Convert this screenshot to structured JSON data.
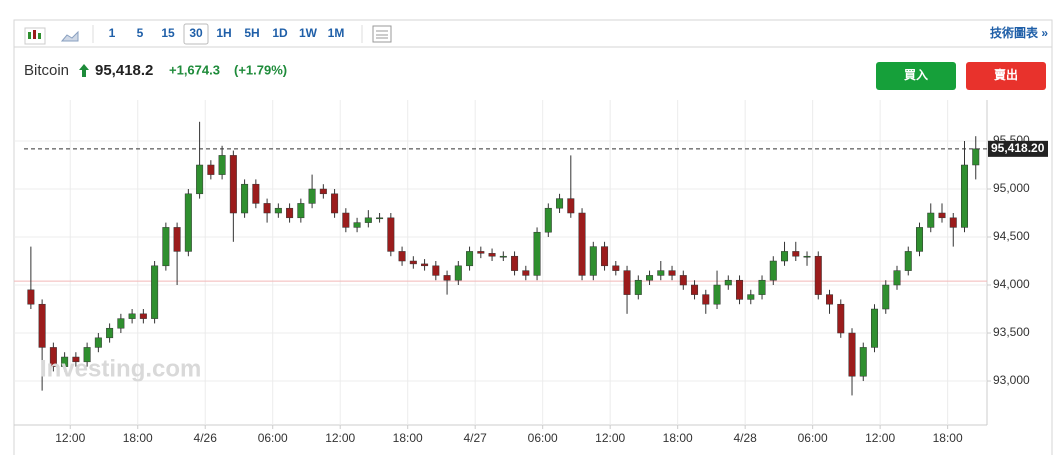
{
  "toolbar": {
    "intervals": [
      "1",
      "5",
      "15",
      "30",
      "1H",
      "5H",
      "1D",
      "1W",
      "1M"
    ],
    "selected_interval": 3,
    "link": "技術圖表 »"
  },
  "quote": {
    "name": "Bitcoin",
    "price": "95,418.2",
    "change": "+1,674.3",
    "change_percent": "(+1.79%)"
  },
  "buttons": {
    "buy": "買入",
    "sell": "賣出"
  },
  "chart_data": {
    "type": "candlestick",
    "watermark": "Investing.com",
    "up_color": "#2f8f2f",
    "down_color": "#9b1c1c",
    "x": [
      -15.5,
      -14.5,
      -13.5,
      -12.5,
      -11.5,
      -10.5,
      -9.5,
      -8.5,
      -7.5,
      -6.5,
      -5.5,
      -4.5,
      -3.5,
      -2.5,
      -1.5,
      -0.5,
      0.5,
      1.5,
      2.5,
      3.5,
      4.5,
      5.5,
      6.5,
      7.5,
      8.5,
      9.5,
      10.5,
      11.5,
      12.5,
      13.5,
      14.5,
      15.5,
      16.5,
      17.5,
      18.5,
      19.5,
      20.5,
      21.5,
      22.5,
      23.5,
      24.5,
      25.5,
      26.5,
      27.5,
      28.5,
      29.5,
      30.5,
      31.5,
      32.5,
      33.5,
      34.5,
      35.5,
      36.5,
      37.5,
      38.5,
      39.5,
      40.5,
      41.5,
      42.5,
      43.5,
      44.5,
      45.5,
      46.5,
      47.5,
      48.5,
      49.5,
      50.5,
      51.5,
      52.5,
      53.5,
      54.5,
      55.5,
      56.5,
      57.5,
      58.5,
      59.5,
      60.5,
      61.5,
      62.5,
      63.5,
      64.5,
      65.5,
      66.5,
      67.5,
      68.5
    ],
    "open": [
      93950,
      93800,
      93350,
      93150,
      93250,
      93200,
      93350,
      93450,
      93550,
      93650,
      93700,
      93650,
      94200,
      94600,
      94350,
      94950,
      95250,
      95150,
      95350,
      94750,
      95050,
      94850,
      94750,
      94800,
      94700,
      94850,
      95000,
      94950,
      94750,
      94600,
      94650,
      94700,
      94700,
      94350,
      94250,
      94220,
      94200,
      94100,
      94050,
      94200,
      94350,
      94330,
      94300,
      94300,
      94150,
      94100,
      94550,
      94800,
      94900,
      94750,
      94100,
      94400,
      94200,
      94150,
      93900,
      94050,
      94100,
      94150,
      94100,
      94000,
      93900,
      93800,
      94000,
      94050,
      93850,
      93900,
      94050,
      94250,
      94350,
      94300,
      94300,
      93900,
      93800,
      93500,
      93050,
      93350,
      93750,
      94000,
      94150,
      94350,
      94600,
      94750,
      94700,
      94600,
      95250
    ],
    "high": [
      94400,
      93850,
      93400,
      93300,
      93300,
      93400,
      93500,
      93600,
      93700,
      93750,
      93750,
      94250,
      94650,
      94650,
      95000,
      95700,
      95300,
      95450,
      95400,
      95100,
      95100,
      94900,
      94850,
      94850,
      94900,
      95150,
      95050,
      95000,
      94800,
      94700,
      94780,
      94750,
      94750,
      94400,
      94300,
      94270,
      94250,
      94150,
      94250,
      94400,
      94400,
      94380,
      94350,
      94350,
      94200,
      94600,
      94850,
      94950,
      95350,
      94800,
      94450,
      94450,
      94250,
      94200,
      94100,
      94150,
      94250,
      94200,
      94150,
      94050,
      93950,
      94150,
      94100,
      94100,
      93950,
      94100,
      94300,
      94450,
      94450,
      94350,
      94350,
      93950,
      93850,
      93550,
      93400,
      93800,
      94050,
      94200,
      94400,
      94650,
      94850,
      94850,
      94750,
      95500,
      95550
    ],
    "low": [
      93750,
      92900,
      93100,
      93100,
      93150,
      93150,
      93300,
      93400,
      93500,
      93600,
      93600,
      93600,
      94150,
      94000,
      94300,
      94900,
      95100,
      95100,
      94450,
      94700,
      94800,
      94650,
      94700,
      94650,
      94650,
      94800,
      94900,
      94700,
      94550,
      94550,
      94600,
      94650,
      94300,
      94200,
      94170,
      94150,
      94050,
      93900,
      94000,
      94150,
      94280,
      94250,
      94250,
      94100,
      94050,
      94050,
      94500,
      94750,
      94700,
      94050,
      94050,
      94150,
      94100,
      93700,
      93850,
      94000,
      94050,
      94050,
      93950,
      93850,
      93700,
      93750,
      93950,
      93800,
      93800,
      93850,
      94000,
      94200,
      94250,
      94200,
      93850,
      93700,
      93450,
      92850,
      93000,
      93300,
      93700,
      93950,
      94100,
      94300,
      94550,
      94650,
      94400,
      94550,
      95100
    ],
    "close": [
      93800,
      93350,
      93150,
      93250,
      93200,
      93350,
      93450,
      93550,
      93650,
      93700,
      93650,
      94200,
      94600,
      94350,
      94950,
      95250,
      95150,
      95350,
      94750,
      95050,
      94850,
      94750,
      94800,
      94700,
      94850,
      95000,
      94950,
      94750,
      94600,
      94650,
      94700,
      94700,
      94350,
      94250,
      94220,
      94200,
      94100,
      94050,
      94200,
      94350,
      94330,
      94300,
      94300,
      94150,
      94100,
      94550,
      94800,
      94900,
      94750,
      94100,
      94400,
      94200,
      94150,
      93900,
      94050,
      94100,
      94150,
      94100,
      94000,
      93900,
      93800,
      94000,
      94050,
      93850,
      93900,
      94050,
      94250,
      94350,
      94300,
      94300,
      93900,
      93800,
      93500,
      93050,
      93350,
      93750,
      94000,
      94150,
      94350,
      94600,
      94750,
      94700,
      94600,
      95250,
      95418.2
    ],
    "last_price": {
      "value": 95418.2,
      "label": "95,418.20"
    },
    "reference_line": 94040,
    "xlim": [
      -17,
      69.5
    ],
    "xticks": [
      {
        "value": -12,
        "label": "12:00"
      },
      {
        "value": -6,
        "label": "18:00"
      },
      {
        "value": 0,
        "label": "4/26"
      },
      {
        "value": 6,
        "label": "06:00"
      },
      {
        "value": 12,
        "label": "12:00"
      },
      {
        "value": 18,
        "label": "18:00"
      },
      {
        "value": 24,
        "label": "4/27"
      },
      {
        "value": 30,
        "label": "06:00"
      },
      {
        "value": 36,
        "label": "12:00"
      },
      {
        "value": 42,
        "label": "18:00"
      },
      {
        "value": 48,
        "label": "4/28"
      },
      {
        "value": 54,
        "label": "06:00"
      },
      {
        "value": 60,
        "label": "12:00"
      },
      {
        "value": 66,
        "label": "18:00"
      }
    ],
    "ylim": [
      92542,
      95927
    ],
    "yticks": [
      {
        "value": 93000,
        "label": "93,000"
      },
      {
        "value": 93500,
        "label": "93,500"
      },
      {
        "value": 94000,
        "label": "94,000"
      },
      {
        "value": 94500,
        "label": "94,500"
      },
      {
        "value": 95000,
        "label": "95,000"
      },
      {
        "value": 95500,
        "label": "95,500"
      }
    ],
    "grid": true
  }
}
